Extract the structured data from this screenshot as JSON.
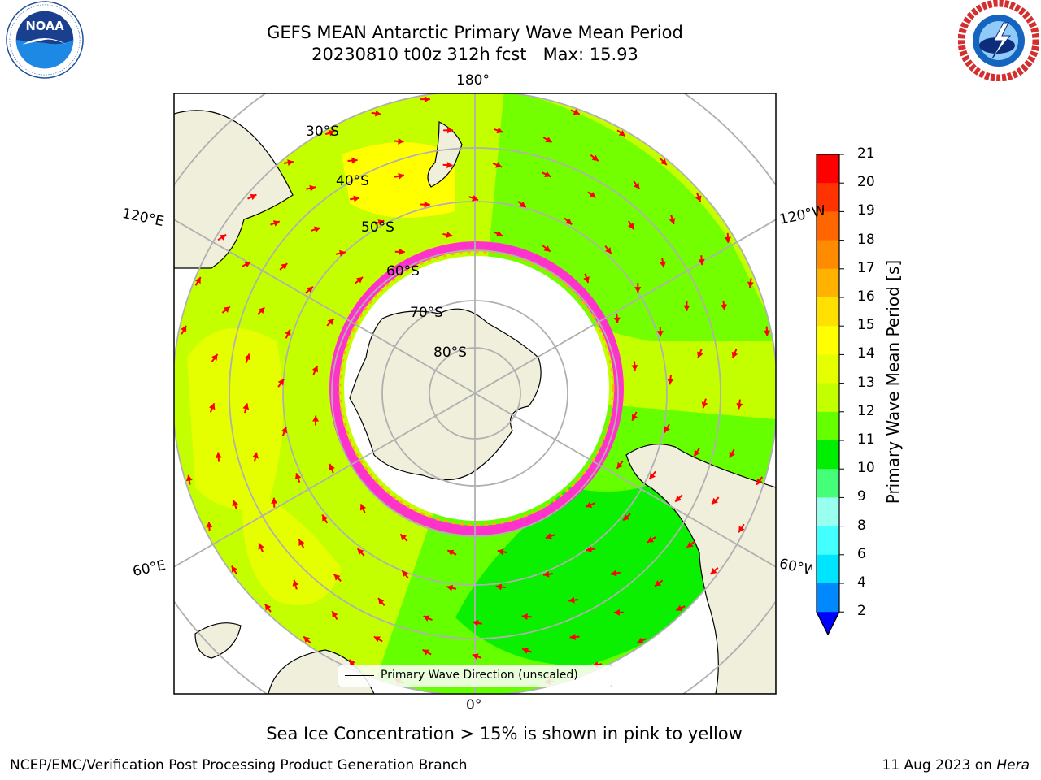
{
  "header": {
    "title_line1": "GEFS MEAN Antarctic Primary Wave Mean Period",
    "title_line2": "20230810 t00z 312h fcst   Max: 15.93"
  },
  "logos": {
    "noaa_text": "NOAA",
    "noaa_ring_text": "NATIONAL OCEANIC AND ATMOSPHERIC ADMINISTRATION · U.S. DEPARTMENT OF COMMERCE",
    "nws_ring_text": "NATIONAL WEATHER SERVICE"
  },
  "map": {
    "projection": "south-polar-stereographic",
    "lon_labels": {
      "top": "180°",
      "bottom": "0°",
      "left_upper": "120°E",
      "left_lower": "60°E",
      "right_upper": "120°W",
      "right_lower": "60°W"
    },
    "lat_labels": [
      "30°S",
      "40°S",
      "50°S",
      "60°S",
      "70°S",
      "80°S"
    ],
    "colors": {
      "land": "#efefdb",
      "ice_edge": "#ff33cc",
      "arrow": "#ff0000",
      "grid": "#b0b0b0"
    },
    "legend_label": "Primary Wave Direction (unscaled)"
  },
  "colorbar": {
    "label": "Primary Wave Mean Period [s]",
    "ticks": [
      "21",
      "20",
      "19",
      "18",
      "17",
      "16",
      "15",
      "14",
      "13",
      "12",
      "11",
      "10",
      "9",
      "8",
      "6",
      "4",
      "2"
    ],
    "levels": [
      {
        "value": "20-21",
        "color": "#ff0000"
      },
      {
        "value": "19-20",
        "color": "#ff3300"
      },
      {
        "value": "18-19",
        "color": "#ff6600"
      },
      {
        "value": "17-18",
        "color": "#ff8c00"
      },
      {
        "value": "16-17",
        "color": "#ffb300"
      },
      {
        "value": "15-16",
        "color": "#ffe000"
      },
      {
        "value": "14-15",
        "color": "#ffff00"
      },
      {
        "value": "13-14",
        "color": "#e6ff00"
      },
      {
        "value": "12-13",
        "color": "#c4ff00"
      },
      {
        "value": "11-12",
        "color": "#66ff00"
      },
      {
        "value": "10-11",
        "color": "#00ee00"
      },
      {
        "value": "9-10",
        "color": "#44ff77"
      },
      {
        "value": "8-9",
        "color": "#99ffee"
      },
      {
        "value": "6-8",
        "color": "#44ffff"
      },
      {
        "value": "4-6",
        "color": "#00e5ff"
      },
      {
        "value": "2-4",
        "color": "#0088ff"
      },
      {
        "value": "<2",
        "color": "#0000ff"
      }
    ]
  },
  "footer": {
    "subtitle": "Sea Ice Concentration > 15% is shown in pink to yellow",
    "left": "NCEP/EMC/Verification Post Processing Product Generation Branch",
    "right_date": "11 Aug 2023 on ",
    "right_machine": "Hera"
  }
}
